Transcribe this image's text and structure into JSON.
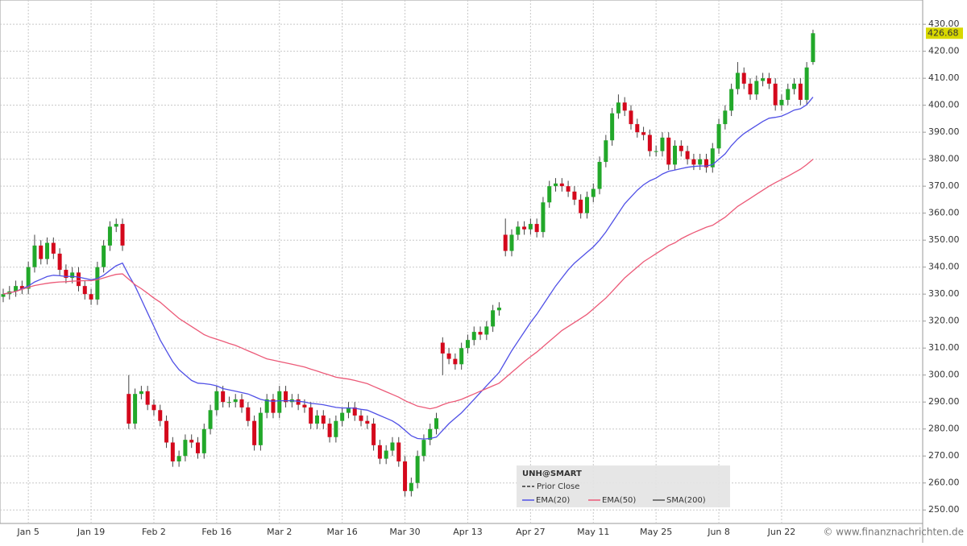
{
  "chart_data": {
    "type": "candlestick",
    "symbol": "UNH@SMART",
    "watermark": "© www.finanznachrichten.de",
    "categories": [
      null,
      null,
      null,
      null,
      "Jan 5",
      null,
      null,
      null,
      null,
      null,
      null,
      null,
      null,
      null,
      "Jan 19",
      null,
      null,
      null,
      null,
      null,
      null,
      null,
      null,
      null,
      "Feb 2",
      null,
      null,
      null,
      null,
      null,
      null,
      null,
      null,
      null,
      "Feb 16",
      null,
      null,
      null,
      null,
      null,
      null,
      null,
      null,
      null,
      "Mar 2",
      null,
      null,
      null,
      null,
      null,
      null,
      null,
      null,
      null,
      "Mar 16",
      null,
      null,
      null,
      null,
      null,
      null,
      null,
      null,
      null,
      "Mar 30",
      null,
      null,
      null,
      null,
      null,
      null,
      null,
      null,
      null,
      "Apr 13",
      null,
      null,
      null,
      null,
      null,
      null,
      null,
      null,
      null,
      "Apr 27",
      null,
      null,
      null,
      null,
      null,
      null,
      null,
      null,
      null,
      "May 11",
      null,
      null,
      null,
      null,
      null,
      null,
      null,
      null,
      null,
      "May 25",
      null,
      null,
      null,
      null,
      null,
      null,
      null,
      null,
      null,
      "Jun 8",
      null,
      null,
      null,
      null,
      null,
      null,
      null,
      null,
      null,
      "Jun 22",
      null,
      null,
      null,
      null,
      null
    ],
    "open": [
      329,
      330,
      331,
      333,
      332,
      340,
      348,
      343,
      349,
      345,
      339,
      336,
      338,
      333,
      330,
      328,
      340,
      348,
      355,
      356,
      293,
      282,
      293,
      294,
      289,
      287,
      283,
      275,
      268,
      270,
      276,
      275,
      271,
      280,
      287,
      294,
      290,
      290,
      291,
      288,
      283,
      274,
      286,
      291,
      286,
      294,
      290,
      291,
      289,
      288,
      282,
      285,
      282,
      277,
      283,
      286,
      288,
      285,
      283,
      282,
      274,
      269,
      272,
      275,
      268,
      257,
      260,
      270,
      276,
      280,
      312,
      308,
      306,
      304,
      310,
      313,
      316,
      315,
      318,
      324,
      352,
      346,
      352,
      355,
      354,
      356,
      353,
      364,
      370,
      371,
      370,
      368,
      365,
      360,
      366,
      369,
      379,
      387,
      397,
      401,
      398,
      393,
      390,
      389,
      383,
      383,
      388,
      378,
      385,
      383,
      380,
      378,
      380,
      377,
      384,
      393,
      398,
      406,
      412,
      408,
      404,
      409,
      410,
      408,
      400,
      402,
      406,
      408,
      402,
      416
    ],
    "high": [
      332,
      333,
      335,
      335,
      342,
      352,
      350,
      351,
      351,
      347,
      341,
      340,
      340,
      335,
      332,
      342,
      350,
      357,
      358,
      358,
      300,
      295,
      296,
      296,
      291,
      289,
      285,
      277,
      272,
      278,
      278,
      277,
      282,
      289,
      296,
      296,
      292,
      293,
      293,
      290,
      285,
      288,
      293,
      293,
      296,
      296,
      293,
      293,
      291,
      290,
      287,
      287,
      284,
      285,
      288,
      290,
      290,
      287,
      285,
      284,
      276,
      274,
      277,
      277,
      270,
      262,
      272,
      278,
      282,
      286,
      314,
      310,
      308,
      312,
      315,
      318,
      318,
      320,
      326,
      327,
      358,
      354,
      357,
      357,
      358,
      358,
      366,
      372,
      373,
      373,
      372,
      370,
      367,
      368,
      371,
      381,
      389,
      399,
      404,
      403,
      400,
      395,
      392,
      391,
      385,
      390,
      390,
      387,
      387,
      385,
      382,
      382,
      382,
      386,
      395,
      400,
      408,
      416,
      414,
      410,
      411,
      412,
      412,
      410,
      404,
      408,
      410,
      410,
      416,
      428
    ],
    "low": [
      327,
      328,
      329,
      330,
      330,
      338,
      341,
      341,
      343,
      337,
      334,
      334,
      331,
      328,
      326,
      326,
      338,
      346,
      353,
      346,
      280,
      280,
      291,
      287,
      285,
      281,
      273,
      266,
      266,
      268,
      273,
      269,
      269,
      278,
      285,
      288,
      288,
      288,
      286,
      281,
      272,
      272,
      284,
      284,
      284,
      288,
      288,
      287,
      286,
      280,
      280,
      280,
      275,
      275,
      281,
      284,
      283,
      281,
      280,
      272,
      267,
      267,
      270,
      266,
      255,
      255,
      258,
      268,
      274,
      278,
      300,
      304,
      302,
      302,
      308,
      311,
      313,
      313,
      316,
      322,
      344,
      344,
      350,
      352,
      352,
      351,
      351,
      362,
      368,
      368,
      366,
      363,
      358,
      358,
      364,
      367,
      377,
      385,
      395,
      396,
      391,
      388,
      387,
      381,
      381,
      381,
      376,
      376,
      381,
      378,
      376,
      376,
      375,
      375,
      382,
      391,
      396,
      404,
      406,
      402,
      402,
      407,
      406,
      398,
      398,
      400,
      404,
      400,
      400,
      415
    ],
    "close": [
      330,
      331,
      333,
      332,
      340,
      348,
      343,
      349,
      345,
      339,
      336,
      338,
      333,
      330,
      328,
      340,
      348,
      355,
      356,
      348,
      282,
      293,
      294,
      289,
      287,
      283,
      275,
      268,
      270,
      276,
      275,
      271,
      280,
      287,
      294,
      290,
      290,
      291,
      288,
      283,
      274,
      286,
      291,
      286,
      294,
      290,
      291,
      289,
      288,
      282,
      285,
      282,
      277,
      283,
      286,
      288,
      285,
      283,
      282,
      274,
      269,
      272,
      275,
      268,
      257,
      260,
      270,
      276,
      280,
      284,
      308,
      306,
      304,
      310,
      313,
      316,
      315,
      318,
      324,
      325,
      346,
      352,
      355,
      354,
      356,
      353,
      364,
      370,
      371,
      370,
      368,
      365,
      360,
      366,
      369,
      379,
      387,
      397,
      401,
      398,
      393,
      390,
      389,
      383,
      383,
      388,
      378,
      385,
      383,
      380,
      378,
      380,
      377,
      384,
      393,
      398,
      406,
      412,
      408,
      404,
      409,
      410,
      408,
      400,
      402,
      406,
      408,
      402,
      414,
      426.68
    ],
    "up_color": "#22a82a",
    "down_color": "#d4081c",
    "series": [
      {
        "name": "EMA(20)",
        "color": "#5050e6",
        "values": [
          330,
          330.5,
          331,
          332,
          333,
          334.5,
          335.5,
          336.5,
          337,
          336.8,
          336.5,
          336.6,
          336.3,
          335.8,
          335.3,
          335.8,
          337,
          338.8,
          340.5,
          341.5,
          337,
          333,
          328,
          323,
          318,
          313,
          309,
          305,
          302,
          300,
          298,
          297,
          296.8,
          296.5,
          296,
          295,
          294.5,
          294,
          293.5,
          293,
          292,
          291,
          290.5,
          290.3,
          290.5,
          290.5,
          290.5,
          290.3,
          290,
          289.5,
          289.3,
          289,
          288.5,
          288,
          287.8,
          287.8,
          287.7,
          287.3,
          287,
          286,
          285,
          284,
          283,
          281.5,
          279.5,
          277.5,
          276.5,
          276.3,
          276.5,
          277,
          279.5,
          282,
          284,
          286,
          288.5,
          291,
          293.5,
          296,
          298.5,
          301,
          305,
          309,
          312.5,
          316,
          319.5,
          322.5,
          326,
          329.5,
          333,
          336,
          339,
          341.5,
          343.5,
          345.5,
          347.5,
          350,
          353,
          356.5,
          360,
          363.5,
          366,
          368.5,
          370.5,
          372,
          373,
          374.5,
          375.5,
          376,
          376.5,
          377,
          377.3,
          377.5,
          377.5,
          378,
          380,
          382,
          385,
          387.5,
          389.5,
          391,
          392.5,
          394,
          395.2,
          395.5,
          396,
          397,
          398.2,
          398.7,
          400.2,
          403
        ]
      },
      {
        "name": "EMA(50)",
        "color": "#ec5a78",
        "values": [
          330,
          330.5,
          331,
          331.8,
          332.5,
          333.2,
          333.6,
          334,
          334.3,
          334.5,
          334.6,
          334.8,
          334.9,
          335,
          335,
          335.3,
          336,
          336.7,
          337.3,
          337.5,
          335.5,
          333.5,
          332,
          330.3,
          328.5,
          327,
          325,
          323,
          321,
          319.5,
          318,
          316.5,
          315,
          314,
          313.3,
          312.5,
          311.7,
          311,
          310,
          309,
          308,
          307,
          306,
          305.5,
          305,
          304.5,
          304,
          303.5,
          303,
          302.2,
          301.5,
          300.7,
          300,
          299.2,
          298.8,
          298.5,
          298,
          297.4,
          296.8,
          295.8,
          294.8,
          293.8,
          292.8,
          291.8,
          290.5,
          289.5,
          288.5,
          288,
          287.5,
          288,
          289,
          289.8,
          290.3,
          291,
          292,
          293,
          294,
          295,
          296,
          297,
          299,
          301,
          303,
          305,
          306.8,
          308.5,
          310.5,
          312.5,
          314.5,
          316.5,
          318,
          319.5,
          321,
          322.5,
          324.5,
          326.5,
          328.5,
          331,
          333.5,
          336,
          338,
          340,
          342,
          343.5,
          345,
          346.5,
          348,
          349,
          350.5,
          351.7,
          352.8,
          353.8,
          354.8,
          355.5,
          357,
          358.5,
          360.5,
          362.5,
          364,
          365.5,
          367,
          368.5,
          370,
          371.3,
          372.5,
          373.7,
          375,
          376.3,
          378,
          380
        ]
      }
    ],
    "legend_extra": [
      {
        "name": "Prior Close",
        "color": "#333333",
        "style": "dashed"
      },
      {
        "name": "SMA(200)",
        "color": "#555555",
        "style": "solid"
      }
    ],
    "ylim": [
      245,
      439
    ],
    "yticks": [
      {
        "value": 250,
        "label": "250.00"
      },
      {
        "value": 260,
        "label": "260.00"
      },
      {
        "value": 270,
        "label": "270.00"
      },
      {
        "value": 280,
        "label": "280.00"
      },
      {
        "value": 290,
        "label": "290.00"
      },
      {
        "value": 300,
        "label": "300.00"
      },
      {
        "value": 310,
        "label": "310.00"
      },
      {
        "value": 320,
        "label": "320.00"
      },
      {
        "value": 330,
        "label": "330.00"
      },
      {
        "value": 340,
        "label": "340.00"
      },
      {
        "value": 350,
        "label": "350.00"
      },
      {
        "value": 360,
        "label": "360.00"
      },
      {
        "value": 370,
        "label": "370.00"
      },
      {
        "value": 380,
        "label": "380.00"
      },
      {
        "value": 390,
        "label": "390.00"
      },
      {
        "value": 400,
        "label": "400.00"
      },
      {
        "value": 410,
        "label": "410.00"
      },
      {
        "value": 420,
        "label": "420.00"
      },
      {
        "value": 430,
        "label": "430.00"
      }
    ],
    "grid": true
  }
}
